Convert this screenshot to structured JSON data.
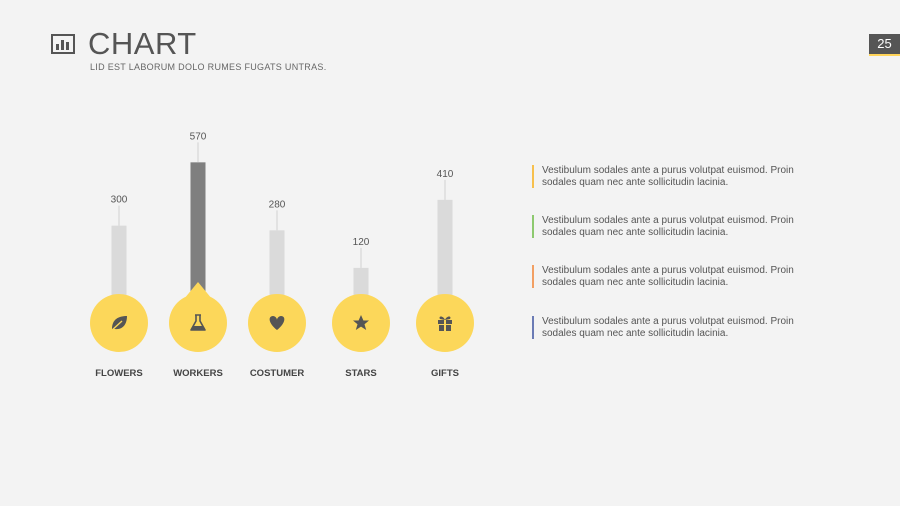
{
  "header": {
    "title": "CHART",
    "subtitle": "LID EST LABORUM DOLO RUMES FUGATS UNTRAS.",
    "page_number": "25"
  },
  "colors": {
    "bar": "#dadada",
    "bar_highlight": "#7f7f7f",
    "circle": "#fcd75a",
    "icon": "#555555",
    "accent_orange": "#f7b94d",
    "accent_green": "#8dc96f",
    "accent_orange2": "#f29f63",
    "accent_blue": "#6b7bb5"
  },
  "chart_data": {
    "type": "bar",
    "title": "",
    "categories": [
      "FLOWERS",
      "WORKERS",
      "COSTUMER",
      "STARS",
      "GIFTS"
    ],
    "values": [
      300,
      570,
      280,
      120,
      410
    ],
    "value_labels": [
      "300",
      "570",
      "280",
      "120",
      "410"
    ],
    "icons": [
      "leaf-icon",
      "flask-icon",
      "heart-icon",
      "star-icon",
      "gift-icon"
    ],
    "highlighted_index": 1,
    "ylim": [
      0,
      600
    ],
    "xlabel": "",
    "ylabel": ""
  },
  "descriptions": [
    {
      "line1": "Vestibulum sodales ante a purus volutpat euismod. Proin",
      "line2": "sodales quam nec ante sollicitudin lacinia.",
      "accent": "#f7c04d"
    },
    {
      "line1": "Vestibulum sodales ante a purus volutpat euismod. Proin",
      "line2": "sodales quam nec ante sollicitudin lacinia.",
      "accent": "#8dc96f"
    },
    {
      "line1": "Vestibulum sodales ante a purus volutpat euismod. Proin",
      "line2": "sodales quam nec ante sollicitudin lacinia.",
      "accent": "#f29f63"
    },
    {
      "line1": "Vestibulum sodales ante a purus volutpat euismod. Proin",
      "line2": "sodales quam nec ante sollicitudin lacinia.",
      "accent": "#6b7bb5"
    }
  ]
}
